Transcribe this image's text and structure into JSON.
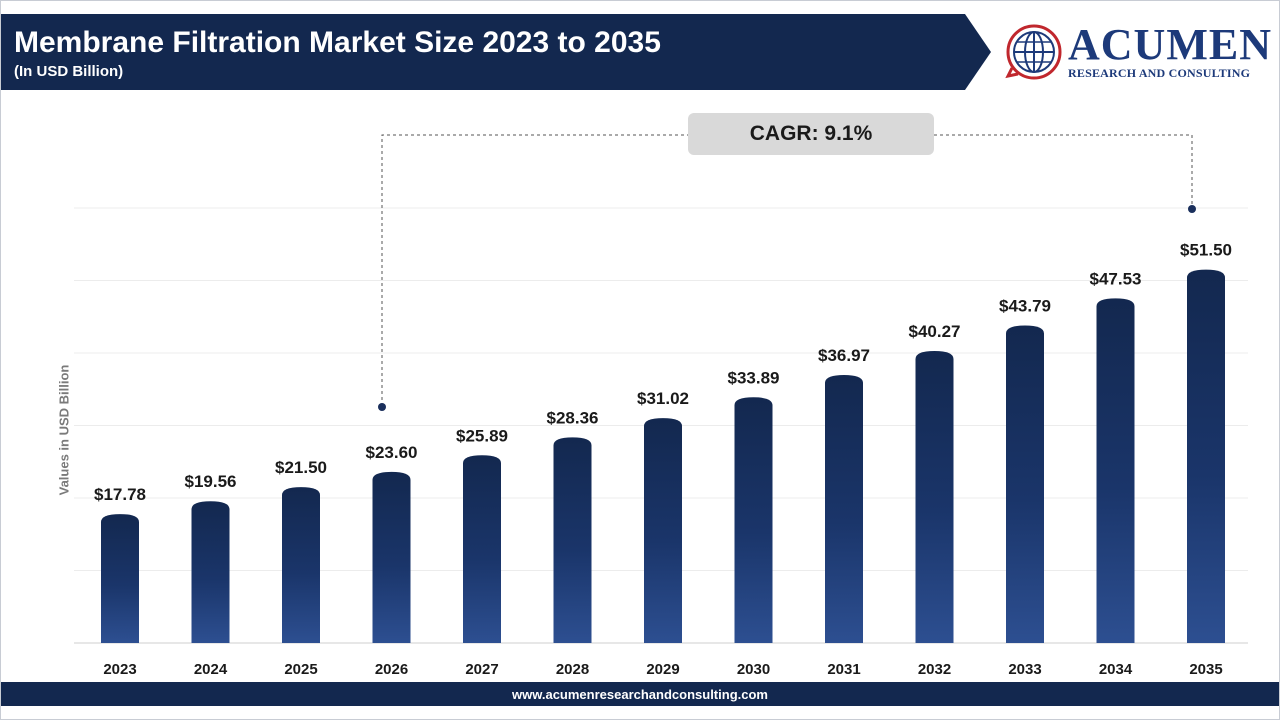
{
  "header": {
    "title": "Membrane Filtration Market Size 2023 to 2035",
    "subtitle": "(In USD Billion)"
  },
  "logo": {
    "name": "ACUMEN",
    "tagline": "RESEARCH AND CONSULTING",
    "icon": "globe-icon"
  },
  "annotation": {
    "cagr_label": "CAGR: 9.1%"
  },
  "footer": {
    "url": "www.acumenresearchandconsulting.com"
  },
  "colors": {
    "banner": "#13284f",
    "bar_top": "#13284f",
    "bar_bottom": "#2d4f91",
    "label": "#1a1a1a",
    "grid": "#e6e6e6"
  },
  "chart_data": {
    "type": "bar",
    "title": "Membrane Filtration Market Size 2023 to 2035",
    "subtitle": "(In USD Billion)",
    "xlabel": "",
    "ylabel": "Values in USD Billion",
    "categories": [
      "2023",
      "2024",
      "2025",
      "2026",
      "2027",
      "2028",
      "2029",
      "2030",
      "2031",
      "2032",
      "2033",
      "2034",
      "2035"
    ],
    "values": [
      17.78,
      19.56,
      21.5,
      23.6,
      25.89,
      28.36,
      31.02,
      33.89,
      36.97,
      40.27,
      43.79,
      47.53,
      51.5
    ],
    "data_labels": [
      "$17.78",
      "$19.56",
      "$21.50",
      "$23.60",
      "$25.89",
      "$28.36",
      "$31.02",
      "$33.89",
      "$36.97",
      "$40.27",
      "$43.79",
      "$47.53",
      "$51.50"
    ],
    "ylim": [
      0,
      60
    ],
    "grid": true,
    "annotation": "CAGR: 9.1%"
  }
}
